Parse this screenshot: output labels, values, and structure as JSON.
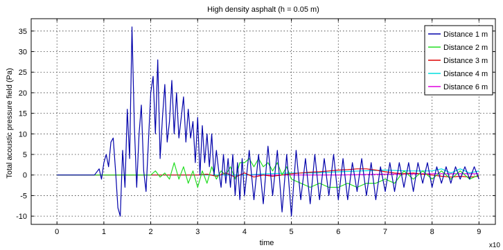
{
  "chart_data": {
    "type": "line",
    "title": "High density asphalt (h = 0.05 m)",
    "xlabel": "time",
    "ylabel": "Total acoustic pressure field (Pa)",
    "x_exponent_label": "x10",
    "xlim": [
      -0.55,
      9.35
    ],
    "ylim": [
      -12,
      38
    ],
    "xticks": [
      0,
      1,
      2,
      3,
      4,
      5,
      6,
      7,
      8,
      9
    ],
    "yticks": [
      -10,
      -5,
      0,
      5,
      10,
      15,
      20,
      25,
      30,
      35
    ],
    "grid": true,
    "legend_position": "top-right",
    "series": [
      {
        "name": "Distance 1 m",
        "color": "#0000aa",
        "x": [
          0,
          0.8,
          0.9,
          0.95,
          1.0,
          1.05,
          1.1,
          1.15,
          1.2,
          1.25,
          1.3,
          1.35,
          1.4,
          1.45,
          1.5,
          1.55,
          1.6,
          1.65,
          1.7,
          1.75,
          1.8,
          1.85,
          1.9,
          1.95,
          2.0,
          2.05,
          2.1,
          2.15,
          2.2,
          2.25,
          2.3,
          2.35,
          2.4,
          2.45,
          2.5,
          2.55,
          2.6,
          2.65,
          2.7,
          2.75,
          2.8,
          2.85,
          2.9,
          2.95,
          3.0,
          3.05,
          3.1,
          3.15,
          3.2,
          3.25,
          3.3,
          3.35,
          3.4,
          3.45,
          3.5,
          3.55,
          3.6,
          3.65,
          3.7,
          3.75,
          3.8,
          3.85,
          3.9,
          3.95,
          4.0,
          4.1,
          4.2,
          4.3,
          4.4,
          4.5,
          4.6,
          4.7,
          4.8,
          4.9,
          5.0,
          5.1,
          5.2,
          5.3,
          5.4,
          5.5,
          5.6,
          5.7,
          5.8,
          5.9,
          6.0,
          6.1,
          6.2,
          6.3,
          6.4,
          6.5,
          6.6,
          6.7,
          6.8,
          6.9,
          7.0,
          7.1,
          7.2,
          7.3,
          7.4,
          7.5,
          7.6,
          7.7,
          7.8,
          7.9,
          8.0,
          8.1,
          8.2,
          8.3,
          8.4,
          8.5,
          8.6,
          8.7,
          8.8,
          8.9,
          9.0
        ],
        "y": [
          0,
          0,
          1.5,
          -1,
          3,
          5,
          2,
          8,
          9,
          1,
          -8,
          -10,
          6,
          -3,
          16,
          4,
          36,
          12,
          -3,
          10,
          17,
          1,
          -4,
          8,
          20,
          24,
          10,
          28,
          4,
          14,
          22,
          8,
          13,
          23,
          10,
          20,
          9,
          14,
          19,
          8,
          16,
          9,
          13,
          3,
          14,
          0,
          12,
          3,
          10,
          2,
          10,
          0,
          6,
          1,
          -3,
          5,
          -2,
          4,
          -3,
          5,
          -5,
          3,
          -6,
          4,
          -5,
          6,
          -6,
          5,
          -7,
          7,
          -5,
          6,
          -9,
          5,
          -10,
          6,
          -6,
          4,
          -7,
          5,
          -6,
          4,
          -5,
          5,
          -6,
          4,
          -6,
          3,
          -4,
          4,
          -5,
          3,
          -6,
          2,
          -4,
          3,
          -4,
          3,
          -3,
          3,
          -4,
          3,
          -2,
          3,
          -3,
          2,
          -2,
          2,
          -2,
          2,
          -1,
          2,
          -1,
          2,
          -1
        ]
      },
      {
        "name": "Distance 2 m",
        "color": "#22dd22",
        "x": [
          0,
          2.0,
          2.1,
          2.2,
          2.3,
          2.4,
          2.5,
          2.6,
          2.7,
          2.8,
          2.9,
          3.0,
          3.1,
          3.2,
          3.3,
          3.4,
          3.5,
          3.6,
          3.7,
          3.8,
          3.9,
          4.0,
          4.1,
          4.2,
          4.3,
          4.4,
          4.5,
          4.6,
          4.7,
          4.8,
          4.9,
          5.0,
          5.2,
          5.4,
          5.6,
          5.8,
          6.0,
          6.2,
          6.4,
          6.6,
          6.8,
          7.0,
          7.2,
          7.4,
          7.6,
          7.8,
          8.0,
          8.2,
          8.4,
          8.6,
          8.8,
          9.0
        ],
        "y": [
          0,
          0,
          1,
          -0.5,
          0.5,
          -1,
          3,
          -1,
          2,
          -2,
          1,
          -3,
          1,
          -2,
          2,
          -1,
          1,
          0,
          2,
          -1,
          3,
          3,
          4,
          2,
          4,
          2,
          3,
          1,
          3,
          0,
          2,
          -1,
          -2,
          -3,
          -2,
          -3,
          -3,
          -2,
          -3,
          -2,
          -2,
          -1,
          -2,
          1,
          -1,
          1,
          -1,
          1,
          -1,
          1,
          -1,
          0
        ]
      },
      {
        "name": "Distance 3 m",
        "color": "#dd0000",
        "x": [
          0,
          3.0,
          3.2,
          3.4,
          3.6,
          3.8,
          4.0,
          4.2,
          4.4,
          4.6,
          4.8,
          5.0,
          5.2,
          5.4,
          5.6,
          5.8,
          6.0,
          6.2,
          6.4,
          6.6,
          6.8,
          7.0,
          7.2,
          7.4,
          7.6,
          7.8,
          8.0,
          8.2,
          8.4,
          8.6,
          8.8,
          9.0
        ],
        "y": [
          0,
          0,
          0.2,
          -0.3,
          0.5,
          -0.5,
          0.5,
          -0.5,
          0,
          -0.3,
          0,
          0.3,
          0.5,
          0.7,
          0.8,
          1,
          1.2,
          1.3,
          1.5,
          1.5,
          1.2,
          0.8,
          0.5,
          0.3,
          0.5,
          0.2,
          0,
          -0.3,
          -0.5,
          -0.3,
          -0.5,
          -0.3
        ]
      },
      {
        "name": "Distance 4 m",
        "color": "#00dddd",
        "x": [
          0,
          4.0,
          4.5,
          5.0,
          5.5,
          6.0,
          6.5,
          7.0,
          7.5,
          8.0,
          8.2,
          8.4,
          8.6,
          8.8,
          9.0
        ],
        "y": [
          0,
          0,
          0.3,
          0.5,
          0.5,
          0.8,
          1,
          1.2,
          1,
          1,
          1.5,
          0.5,
          1.5,
          0.5,
          1
        ]
      },
      {
        "name": "Distance 6 m",
        "color": "#dd00dd",
        "x": [
          0,
          5.0,
          6.0,
          7.0,
          8.0,
          9.0
        ],
        "y": [
          0,
          0,
          0,
          0.2,
          0.3,
          0.3
        ]
      }
    ]
  }
}
